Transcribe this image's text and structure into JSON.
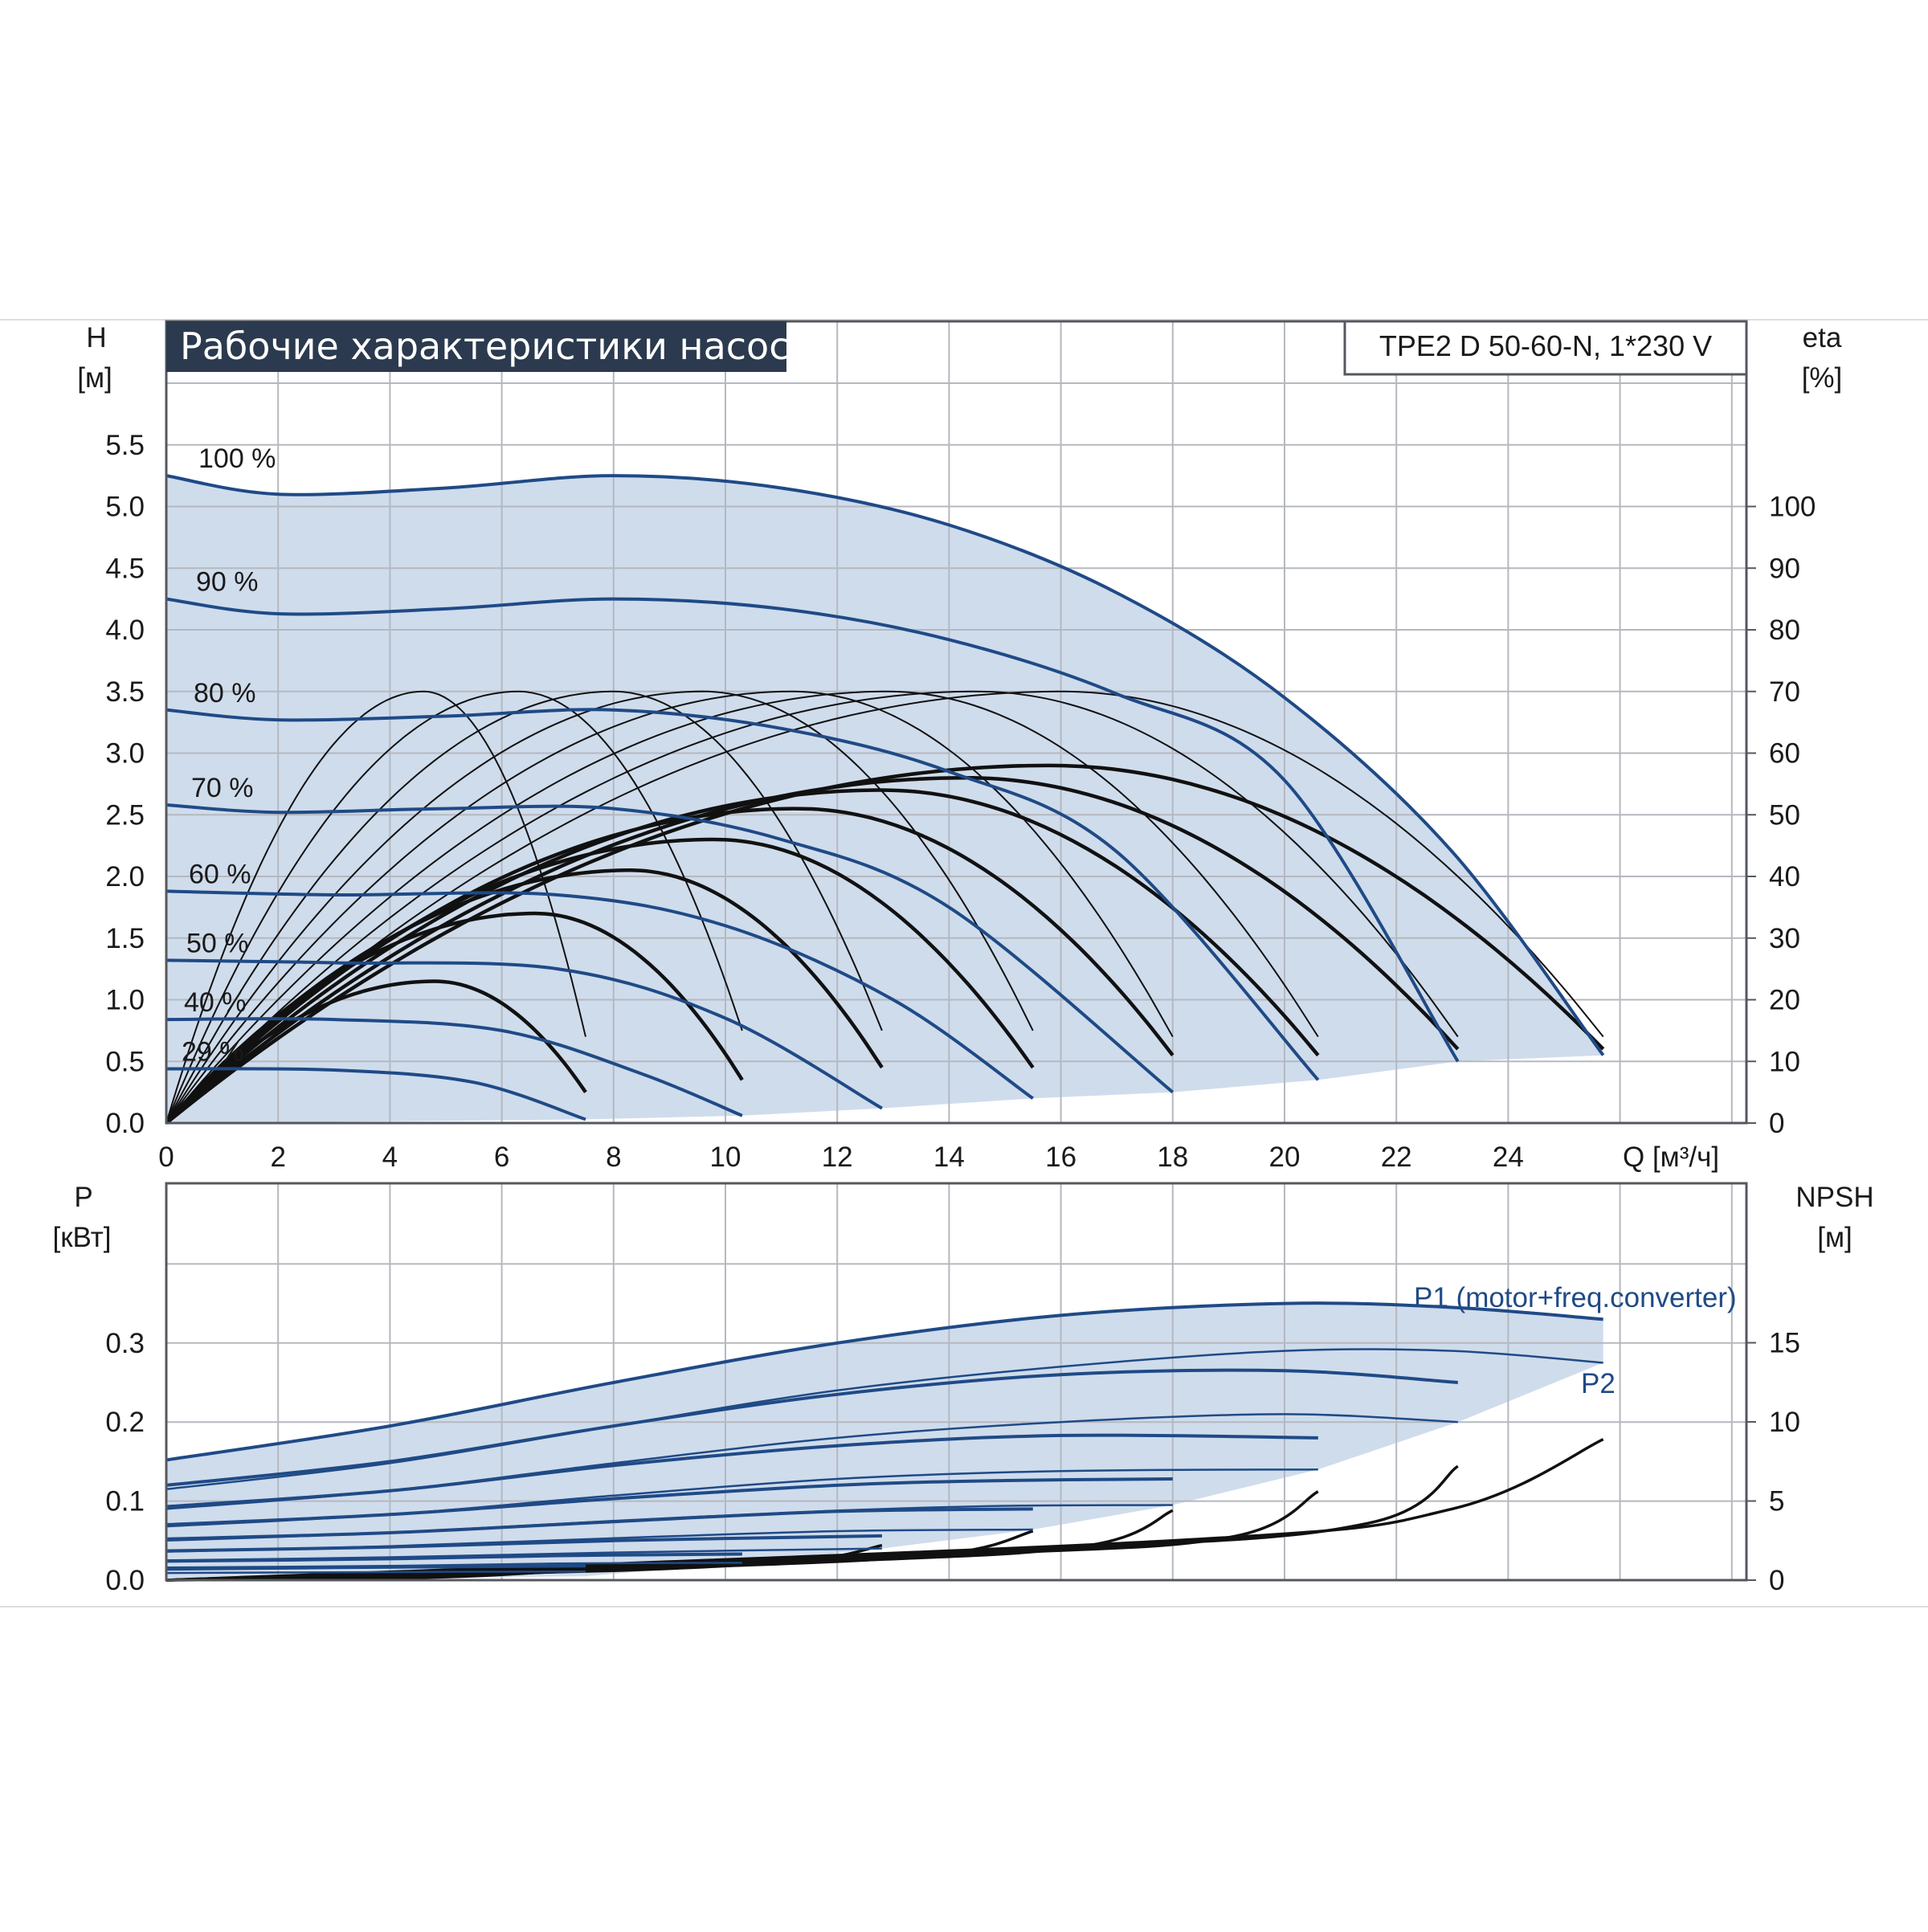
{
  "title": "Рабочие характеристики насоса",
  "model": "TPE2 D 50-60-N, 1*230 V",
  "colors": {
    "speed_curve": "#1f4a86",
    "efficiency_curve": "#111111",
    "area_fill": "#cfdcec",
    "grid": "#b5b8bf",
    "title_bg": "#2b3a4e"
  },
  "chart_data": [
    {
      "type": "line",
      "name": "head",
      "ylabel": "H",
      "yunit": "[м]",
      "y2label": "eta",
      "y2unit": "[%]",
      "xlabel": "Q [м³/ч]",
      "x_ticks": [
        "0",
        "2",
        "4",
        "6",
        "8",
        "10",
        "12",
        "14",
        "16",
        "18",
        "20",
        "22",
        "24"
      ],
      "y_ticks": [
        "0.0",
        "0.5",
        "1.0",
        "1.5",
        "2.0",
        "2.5",
        "3.0",
        "3.5",
        "4.0",
        "4.5",
        "5.0",
        "5.5"
      ],
      "y2_ticks": [
        "0",
        "10",
        "20",
        "30",
        "40",
        "50",
        "60",
        "70",
        "80",
        "90",
        "100"
      ],
      "xlim": [
        0,
        28
      ],
      "ylim": [
        0,
        6.5
      ],
      "y2lim": [
        0,
        130
      ],
      "grid": true,
      "speed_curves": [
        {
          "label": "100 %",
          "points": [
            [
              0,
              5.25
            ],
            [
              2,
              5.1
            ],
            [
              5,
              5.15
            ],
            [
              8,
              5.25
            ],
            [
              11,
              5.15
            ],
            [
              14,
              4.85
            ],
            [
              17,
              4.3
            ],
            [
              20,
              3.45
            ],
            [
              23,
              2.2
            ],
            [
              25.7,
              0.55
            ]
          ]
        },
        {
          "label": "90 %",
          "points": [
            [
              0,
              4.25
            ],
            [
              2,
              4.13
            ],
            [
              5,
              4.17
            ],
            [
              8,
              4.25
            ],
            [
              11,
              4.17
            ],
            [
              14,
              3.92
            ],
            [
              17,
              3.48
            ],
            [
              20,
              2.78
            ],
            [
              23.1,
              0.5
            ]
          ]
        },
        {
          "label": "80 %",
          "points": [
            [
              0,
              3.35
            ],
            [
              2,
              3.27
            ],
            [
              5,
              3.3
            ],
            [
              8,
              3.35
            ],
            [
              11,
              3.2
            ],
            [
              14,
              2.85
            ],
            [
              17,
              2.2
            ],
            [
              20.6,
              0.35
            ]
          ]
        },
        {
          "label": "70 %",
          "points": [
            [
              0,
              2.58
            ],
            [
              2,
              2.52
            ],
            [
              5,
              2.55
            ],
            [
              8,
              2.55
            ],
            [
              11,
              2.3
            ],
            [
              14,
              1.75
            ],
            [
              18,
              0.25
            ]
          ]
        },
        {
          "label": "60 %",
          "points": [
            [
              0,
              1.88
            ],
            [
              3,
              1.85
            ],
            [
              7,
              1.85
            ],
            [
              10,
              1.6
            ],
            [
              13,
              1.0
            ],
            [
              15.5,
              0.2
            ]
          ]
        },
        {
          "label": "50 %",
          "points": [
            [
              0,
              1.32
            ],
            [
              3,
              1.3
            ],
            [
              7,
              1.25
            ],
            [
              10,
              0.85
            ],
            [
              12.8,
              0.12
            ]
          ]
        },
        {
          "label": "40 %",
          "points": [
            [
              0,
              0.84
            ],
            [
              3,
              0.84
            ],
            [
              6,
              0.75
            ],
            [
              8.5,
              0.4
            ],
            [
              10.3,
              0.06
            ]
          ]
        },
        {
          "label": "29 %",
          "points": [
            [
              0,
              0.44
            ],
            [
              3,
              0.43
            ],
            [
              5.5,
              0.33
            ],
            [
              7.5,
              0.03
            ]
          ]
        }
      ],
      "efficiency_curves": [
        {
          "peak_q": 4.8,
          "peak_eta": 23,
          "end_q": 7.5,
          "end_eta": 5
        },
        {
          "peak_q": 6.6,
          "peak_eta": 34,
          "end_q": 10.3,
          "end_eta": 7
        },
        {
          "peak_q": 8.3,
          "peak_eta": 41,
          "end_q": 12.8,
          "end_eta": 9
        },
        {
          "peak_q": 9.8,
          "peak_eta": 46,
          "end_q": 15.5,
          "end_eta": 9
        },
        {
          "peak_q": 11.3,
          "peak_eta": 51,
          "end_q": 18,
          "end_eta": 11
        },
        {
          "peak_q": 12.8,
          "peak_eta": 54,
          "end_q": 20.6,
          "end_eta": 11
        },
        {
          "peak_q": 14.3,
          "peak_eta": 56,
          "end_q": 23.1,
          "end_eta": 12
        },
        {
          "peak_q": 15.8,
          "peak_eta": 58,
          "end_q": 25.7,
          "end_eta": 12
        },
        {
          "peak_q": 4.6,
          "peak_eta": 70,
          "end_q": 7.5,
          "end_eta": 14
        },
        {
          "peak_q": 6.3,
          "peak_eta": 70,
          "end_q": 10.3,
          "end_eta": 15
        },
        {
          "peak_q": 8,
          "peak_eta": 70,
          "end_q": 12.8,
          "end_eta": 15
        },
        {
          "peak_q": 9.6,
          "peak_eta": 70,
          "end_q": 15.5,
          "end_eta": 15
        },
        {
          "peak_q": 11.2,
          "peak_eta": 70,
          "end_q": 18,
          "end_eta": 14
        },
        {
          "peak_q": 12.9,
          "peak_eta": 70,
          "end_q": 20.6,
          "end_eta": 14
        },
        {
          "peak_q": 14.5,
          "peak_eta": 70,
          "end_q": 23.1,
          "end_eta": 14
        },
        {
          "peak_q": 16,
          "peak_eta": 70,
          "end_q": 25.7,
          "end_eta": 14
        }
      ]
    },
    {
      "type": "line",
      "name": "power",
      "ylabel": "P",
      "yunit": "[кВт]",
      "y2label": "NPSH",
      "y2unit": "[м]",
      "x_ticks": [
        "0",
        "2",
        "4",
        "6",
        "8",
        "10",
        "12",
        "14",
        "16",
        "18",
        "20",
        "22",
        "24"
      ],
      "y_ticks": [
        "0.0",
        "0.1",
        "0.2",
        "0.3"
      ],
      "y2_ticks": [
        "0",
        "5",
        "10",
        "15"
      ],
      "xlim": [
        0,
        28
      ],
      "ylim": [
        0,
        0.4
      ],
      "y2lim": [
        0,
        20
      ],
      "grid": true,
      "series_labels": {
        "p1": "P1 (motor+freq.converter)",
        "p2": "P2"
      },
      "p1_curves": [
        {
          "points": [
            [
              0,
              0.152
            ],
            [
              4,
              0.195
            ],
            [
              8,
              0.25
            ],
            [
              12,
              0.3
            ],
            [
              16,
              0.335
            ],
            [
              20,
              0.35
            ],
            [
              23,
              0.345
            ],
            [
              25.7,
              0.33
            ]
          ]
        },
        {
          "points": [
            [
              0,
              0.12
            ],
            [
              4,
              0.15
            ],
            [
              8,
              0.195
            ],
            [
              12,
              0.235
            ],
            [
              16,
              0.26
            ],
            [
              20,
              0.265
            ],
            [
              23.1,
              0.25
            ]
          ]
        },
        {
          "points": [
            [
              0,
              0.093
            ],
            [
              4,
              0.113
            ],
            [
              8,
              0.145
            ],
            [
              12,
              0.17
            ],
            [
              16,
              0.183
            ],
            [
              20.6,
              0.18
            ]
          ]
        },
        {
          "points": [
            [
              0,
              0.07
            ],
            [
              4,
              0.083
            ],
            [
              8,
              0.103
            ],
            [
              12,
              0.12
            ],
            [
              15,
              0.126
            ],
            [
              18,
              0.128
            ]
          ]
        },
        {
          "points": [
            [
              0,
              0.052
            ],
            [
              4,
              0.06
            ],
            [
              8,
              0.074
            ],
            [
              12,
              0.087
            ],
            [
              15.5,
              0.09
            ]
          ]
        },
        {
          "points": [
            [
              0,
              0.037
            ],
            [
              4,
              0.042
            ],
            [
              8,
              0.05
            ],
            [
              12.8,
              0.056
            ]
          ]
        },
        {
          "points": [
            [
              0,
              0.024
            ],
            [
              4,
              0.027
            ],
            [
              7,
              0.031
            ],
            [
              10.3,
              0.033
            ]
          ]
        },
        {
          "points": [
            [
              0,
              0.014
            ],
            [
              3,
              0.016
            ],
            [
              7.5,
              0.018
            ]
          ]
        }
      ],
      "p2_curves": [
        {
          "points": [
            [
              0,
              0.115
            ],
            [
              4,
              0.148
            ],
            [
              8,
              0.195
            ],
            [
              12,
              0.24
            ],
            [
              16,
              0.27
            ],
            [
              20,
              0.29
            ],
            [
              23,
              0.29
            ],
            [
              25.7,
              0.275
            ]
          ]
        },
        {
          "points": [
            [
              0,
              0.09
            ],
            [
              4,
              0.113
            ],
            [
              8,
              0.148
            ],
            [
              12,
              0.18
            ],
            [
              16,
              0.2
            ],
            [
              20,
              0.21
            ],
            [
              23.1,
              0.2
            ]
          ]
        },
        {
          "points": [
            [
              0,
              0.068
            ],
            [
              4,
              0.083
            ],
            [
              8,
              0.107
            ],
            [
              12,
              0.128
            ],
            [
              16,
              0.138
            ],
            [
              20.6,
              0.14
            ]
          ]
        },
        {
          "points": [
            [
              0,
              0.05
            ],
            [
              4,
              0.06
            ],
            [
              8,
              0.075
            ],
            [
              12,
              0.088
            ],
            [
              15,
              0.094
            ],
            [
              18,
              0.095
            ]
          ]
        },
        {
          "points": [
            [
              0,
              0.036
            ],
            [
              4,
              0.043
            ],
            [
              8,
              0.053
            ],
            [
              12,
              0.062
            ],
            [
              15.5,
              0.064
            ]
          ]
        },
        {
          "points": [
            [
              0,
              0.025
            ],
            [
              4,
              0.029
            ],
            [
              8,
              0.035
            ],
            [
              12.8,
              0.04
            ]
          ]
        },
        {
          "points": [
            [
              0,
              0.016
            ],
            [
              4,
              0.018
            ],
            [
              7,
              0.021
            ],
            [
              10.3,
              0.022
            ]
          ]
        },
        {
          "points": [
            [
              0,
              0.009
            ],
            [
              3,
              0.01
            ],
            [
              7.5,
              0.011
            ]
          ]
        }
      ],
      "npsh_curves": [
        {
          "points": [
            [
              0,
              0
            ],
            [
              5,
              0.2
            ],
            [
              7.5,
              0.7
            ]
          ]
        },
        {
          "points": [
            [
              0,
              0
            ],
            [
              6,
              0.4
            ],
            [
              9,
              0.9
            ],
            [
              10.3,
              1.3
            ]
          ]
        },
        {
          "points": [
            [
              0,
              0
            ],
            [
              8,
              0.6
            ],
            [
              11.5,
              1.3
            ],
            [
              12.8,
              2.2
            ]
          ]
        },
        {
          "points": [
            [
              0,
              0
            ],
            [
              10,
              0.9
            ],
            [
              14,
              1.7
            ],
            [
              15.5,
              3.1
            ]
          ]
        },
        {
          "points": [
            [
              0,
              0
            ],
            [
              12,
              1.2
            ],
            [
              16.5,
              2.2
            ],
            [
              18,
              4.4
            ]
          ]
        },
        {
          "points": [
            [
              0,
              0
            ],
            [
              14,
              1.6
            ],
            [
              19,
              2.7
            ],
            [
              20.6,
              5.6
            ]
          ]
        },
        {
          "points": [
            [
              0,
              0
            ],
            [
              16,
              2.0
            ],
            [
              21.5,
              3.6
            ],
            [
              23.1,
              7.2
            ]
          ]
        },
        {
          "points": [
            [
              0,
              0
            ],
            [
              18,
              2.5
            ],
            [
              23,
              4.5
            ],
            [
              25.7,
              8.9
            ]
          ]
        }
      ]
    }
  ]
}
